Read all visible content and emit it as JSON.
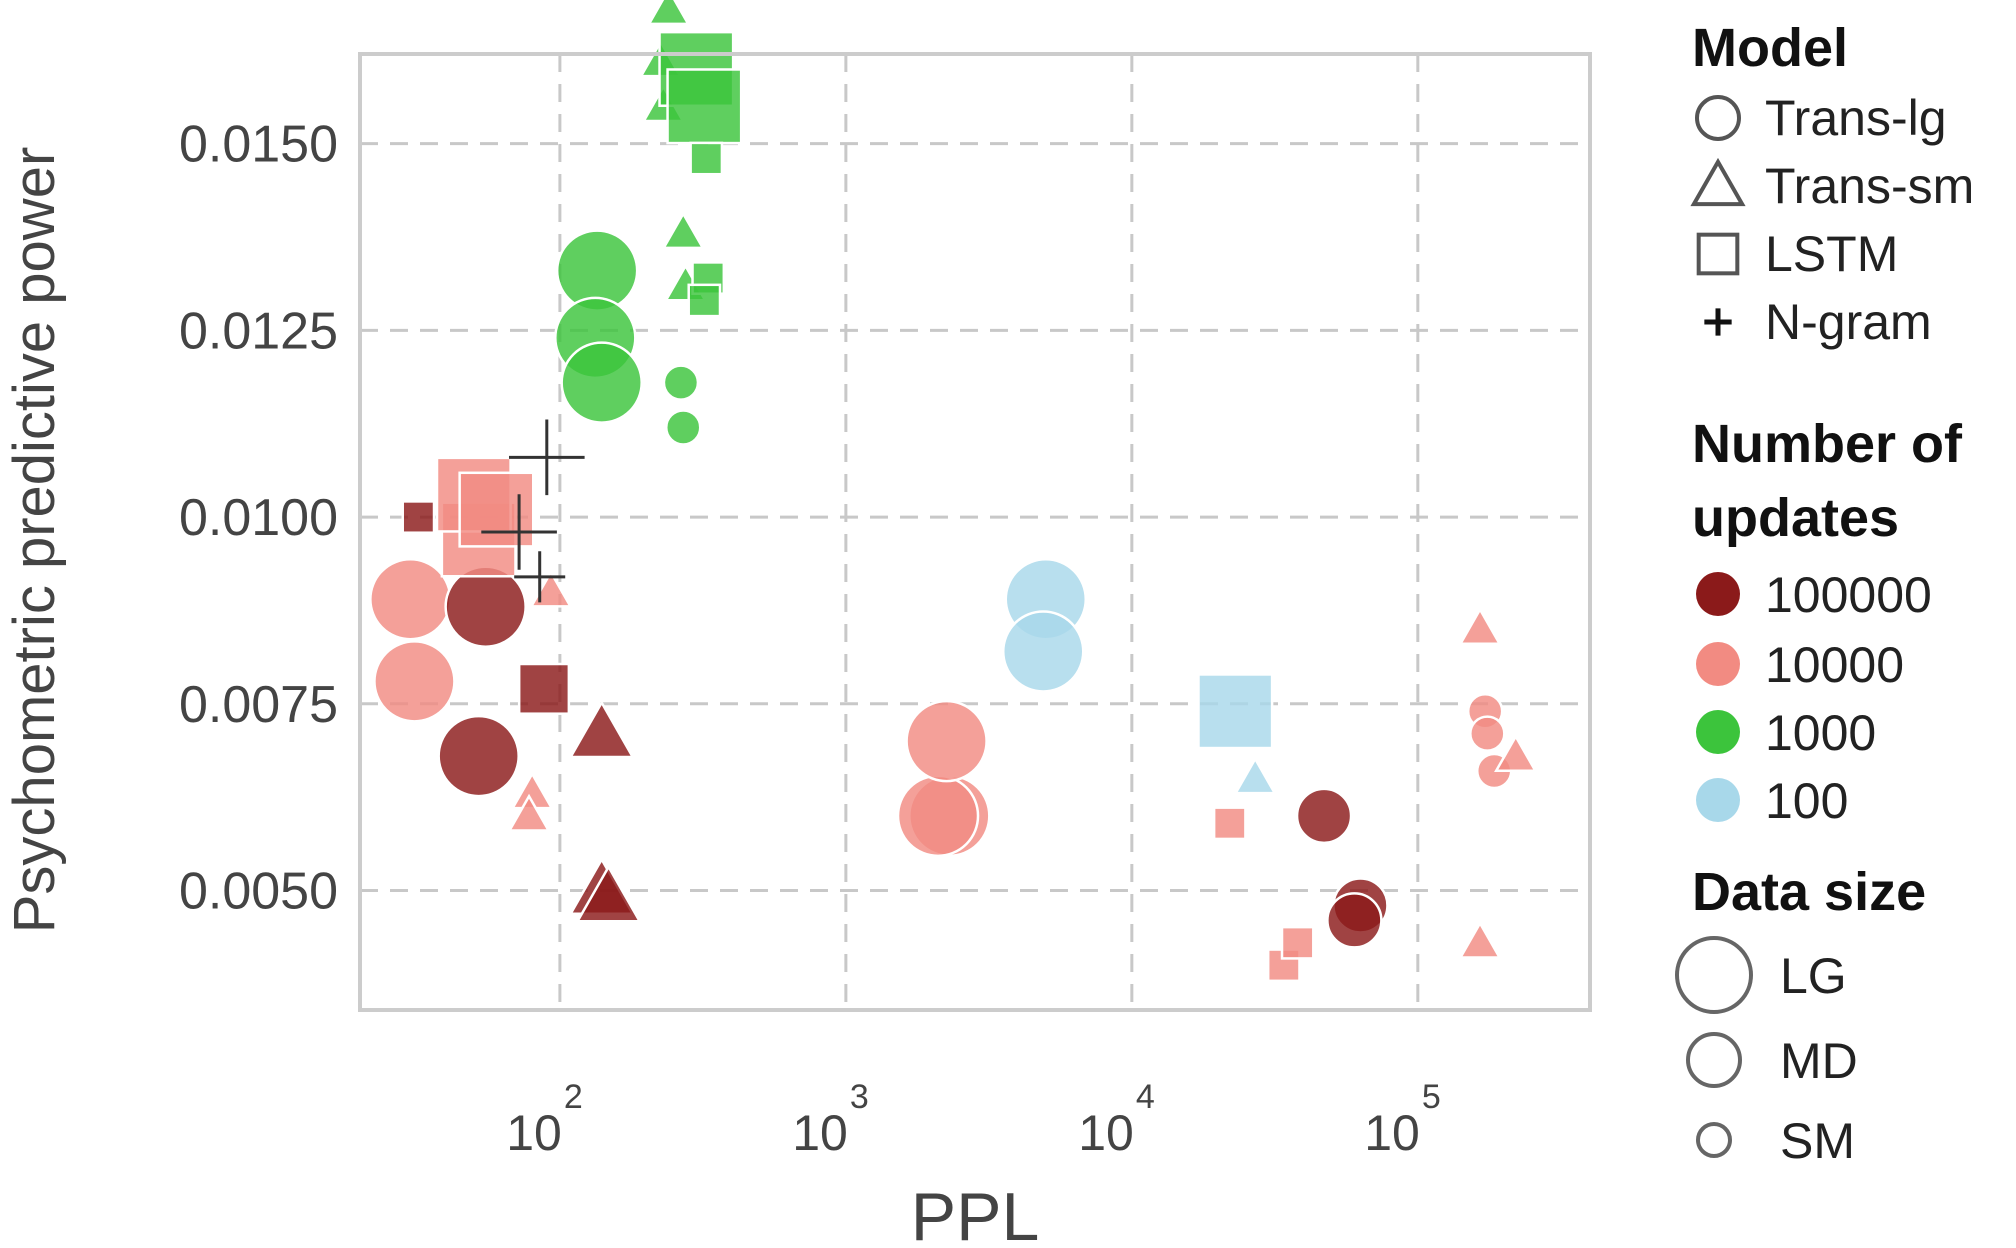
{
  "chart_data": {
    "type": "scatter",
    "title": "",
    "xlabel": "PPL",
    "ylabel": "Psychometric predictive power",
    "xscale": "log",
    "xlim": [
      20,
      400000
    ],
    "ylim": [
      0.0034,
      0.0162
    ],
    "grid": true,
    "legend_position": "right",
    "x_ticks": [
      {
        "value": 100,
        "base": "10",
        "exp": "2"
      },
      {
        "value": 1000,
        "base": "10",
        "exp": "3"
      },
      {
        "value": 10000,
        "base": "10",
        "exp": "4"
      },
      {
        "value": 100000,
        "base": "10",
        "exp": "5"
      }
    ],
    "y_ticks": [
      {
        "value": 0.005,
        "label": "0.0050"
      },
      {
        "value": 0.0075,
        "label": "0.0075"
      },
      {
        "value": 0.01,
        "label": "0.0100"
      },
      {
        "value": 0.0125,
        "label": "0.0125"
      },
      {
        "value": 0.015,
        "label": "0.0150"
      }
    ],
    "legend": {
      "model_title": "Model",
      "model_items": [
        {
          "label": "Trans-lg",
          "marker": "circle"
        },
        {
          "label": "Trans-sm",
          "marker": "triangle"
        },
        {
          "label": "LSTM",
          "marker": "square"
        },
        {
          "label": "N-gram",
          "marker": "plus"
        }
      ],
      "updates_title_line1": "Number of",
      "updates_title_line2": "updates",
      "updates_items": [
        {
          "label": "100000",
          "color": "#8b1a1a"
        },
        {
          "label": "10000",
          "color": "#f28b82"
        },
        {
          "label": "1000",
          "color": "#3cc43c"
        },
        {
          "label": "100",
          "color": "#a8d8ea"
        }
      ],
      "size_title": "Data size",
      "size_items": [
        {
          "label": "LG",
          "size": "LG"
        },
        {
          "label": "MD",
          "size": "MD"
        },
        {
          "label": "SM",
          "size": "SM"
        }
      ]
    },
    "colors": {
      "100000": "#8b1a1a",
      "10000": "#f28b82",
      "1000": "#3cc43c",
      "100": "#a8d8ea",
      "ngram": "#333333"
    },
    "points": [
      {
        "x": 2300,
        "y": 0.006,
        "model": "Trans-lg",
        "updates": "10000",
        "size": "LG"
      },
      {
        "x": 2100,
        "y": 0.006,
        "model": "Trans-lg",
        "updates": "10000",
        "size": "LG"
      },
      {
        "x": 2250,
        "y": 0.007,
        "model": "Trans-lg",
        "updates": "10000",
        "size": "LG"
      },
      {
        "x": 5000,
        "y": 0.0089,
        "model": "Trans-lg",
        "updates": "100",
        "size": "LG"
      },
      {
        "x": 4900,
        "y": 0.0082,
        "model": "Trans-lg",
        "updates": "100",
        "size": "LG"
      },
      {
        "x": 30,
        "y": 0.0089,
        "model": "Trans-lg",
        "updates": "10000",
        "size": "LG"
      },
      {
        "x": 31,
        "y": 0.0078,
        "model": "Trans-lg",
        "updates": "10000",
        "size": "LG"
      },
      {
        "x": 55,
        "y": 0.0088,
        "model": "Trans-lg",
        "updates": "100000",
        "size": "LG"
      },
      {
        "x": 52,
        "y": 0.0068,
        "model": "Trans-lg",
        "updates": "100000",
        "size": "LG"
      },
      {
        "x": 135,
        "y": 0.0133,
        "model": "Trans-lg",
        "updates": "1000",
        "size": "LG"
      },
      {
        "x": 133,
        "y": 0.0124,
        "model": "Trans-lg",
        "updates": "1000",
        "size": "LG"
      },
      {
        "x": 140,
        "y": 0.0118,
        "model": "Trans-lg",
        "updates": "1000",
        "size": "LG"
      },
      {
        "x": 265,
        "y": 0.0118,
        "model": "Trans-lg",
        "updates": "1000",
        "size": "SM"
      },
      {
        "x": 270,
        "y": 0.0112,
        "model": "Trans-lg",
        "updates": "1000",
        "size": "SM"
      },
      {
        "x": 47000,
        "y": 0.006,
        "model": "Trans-lg",
        "updates": "100000",
        "size": "MD"
      },
      {
        "x": 63000,
        "y": 0.0048,
        "model": "Trans-lg",
        "updates": "100000",
        "size": "MD"
      },
      {
        "x": 60000,
        "y": 0.0046,
        "model": "Trans-lg",
        "updates": "100000",
        "size": "MD"
      },
      {
        "x": 172000,
        "y": 0.0074,
        "model": "Trans-lg",
        "updates": "10000",
        "size": "SM"
      },
      {
        "x": 175000,
        "y": 0.0071,
        "model": "Trans-lg",
        "updates": "10000",
        "size": "SM"
      },
      {
        "x": 185000,
        "y": 0.0066,
        "model": "Trans-lg",
        "updates": "10000",
        "size": "SM"
      },
      {
        "x": 240,
        "y": 0.0168,
        "model": "Trans-sm",
        "updates": "1000",
        "size": "SM"
      },
      {
        "x": 225,
        "y": 0.0161,
        "model": "Trans-sm",
        "updates": "1000",
        "size": "SM"
      },
      {
        "x": 230,
        "y": 0.0155,
        "model": "Trans-sm",
        "updates": "1000",
        "size": "SM"
      },
      {
        "x": 270,
        "y": 0.0138,
        "model": "Trans-sm",
        "updates": "1000",
        "size": "SM"
      },
      {
        "x": 275,
        "y": 0.0131,
        "model": "Trans-sm",
        "updates": "1000",
        "size": "SM"
      },
      {
        "x": 140,
        "y": 0.0071,
        "model": "Trans-sm",
        "updates": "100000",
        "size": "MD"
      },
      {
        "x": 140,
        "y": 0.005,
        "model": "Trans-sm",
        "updates": "100000",
        "size": "MD"
      },
      {
        "x": 148,
        "y": 0.0049,
        "model": "Trans-sm",
        "updates": "100000",
        "size": "MD"
      },
      {
        "x": 80,
        "y": 0.0063,
        "model": "Trans-sm",
        "updates": "10000",
        "size": "SM"
      },
      {
        "x": 78,
        "y": 0.006,
        "model": "Trans-sm",
        "updates": "10000",
        "size": "SM"
      },
      {
        "x": 93,
        "y": 0.009,
        "model": "Trans-sm",
        "updates": "10000",
        "size": "SM"
      },
      {
        "x": 27000,
        "y": 0.0065,
        "model": "Trans-sm",
        "updates": "100",
        "size": "SM"
      },
      {
        "x": 165000,
        "y": 0.0085,
        "model": "Trans-sm",
        "updates": "10000",
        "size": "SM"
      },
      {
        "x": 220000,
        "y": 0.0068,
        "model": "Trans-sm",
        "updates": "10000",
        "size": "SM"
      },
      {
        "x": 165000,
        "y": 0.0043,
        "model": "Trans-sm",
        "updates": "10000",
        "size": "SM"
      },
      {
        "x": 300,
        "y": 0.016,
        "model": "LSTM",
        "updates": "1000",
        "size": "LG"
      },
      {
        "x": 320,
        "y": 0.0155,
        "model": "LSTM",
        "updates": "1000",
        "size": "LG"
      },
      {
        "x": 325,
        "y": 0.0148,
        "model": "LSTM",
        "updates": "1000",
        "size": "SM"
      },
      {
        "x": 330,
        "y": 0.0132,
        "model": "LSTM",
        "updates": "1000",
        "size": "SM"
      },
      {
        "x": 320,
        "y": 0.0129,
        "model": "LSTM",
        "updates": "1000",
        "size": "SM"
      },
      {
        "x": 52,
        "y": 0.0097,
        "model": "LSTM",
        "updates": "10000",
        "size": "LG"
      },
      {
        "x": 50,
        "y": 0.0103,
        "model": "LSTM",
        "updates": "10000",
        "size": "LG"
      },
      {
        "x": 60,
        "y": 0.0101,
        "model": "LSTM",
        "updates": "10000",
        "size": "LG"
      },
      {
        "x": 32,
        "y": 0.01,
        "model": "LSTM",
        "updates": "100000",
        "size": "SM"
      },
      {
        "x": 88,
        "y": 0.0077,
        "model": "LSTM",
        "updates": "100000",
        "size": "MD"
      },
      {
        "x": 23000,
        "y": 0.0074,
        "model": "LSTM",
        "updates": "100",
        "size": "LG"
      },
      {
        "x": 22000,
        "y": 0.0059,
        "model": "LSTM",
        "updates": "10000",
        "size": "SM"
      },
      {
        "x": 34000,
        "y": 0.004,
        "model": "LSTM",
        "updates": "10000",
        "size": "SM"
      },
      {
        "x": 38000,
        "y": 0.0043,
        "model": "LSTM",
        "updates": "10000",
        "size": "SM"
      },
      {
        "x": 90,
        "y": 0.0108,
        "model": "N-gram",
        "updates": "ngram",
        "size": "LG"
      },
      {
        "x": 72,
        "y": 0.0098,
        "model": "N-gram",
        "updates": "ngram",
        "size": "LG"
      },
      {
        "x": 85,
        "y": 0.0092,
        "model": "N-gram",
        "updates": "ngram",
        "size": "MD"
      }
    ]
  }
}
